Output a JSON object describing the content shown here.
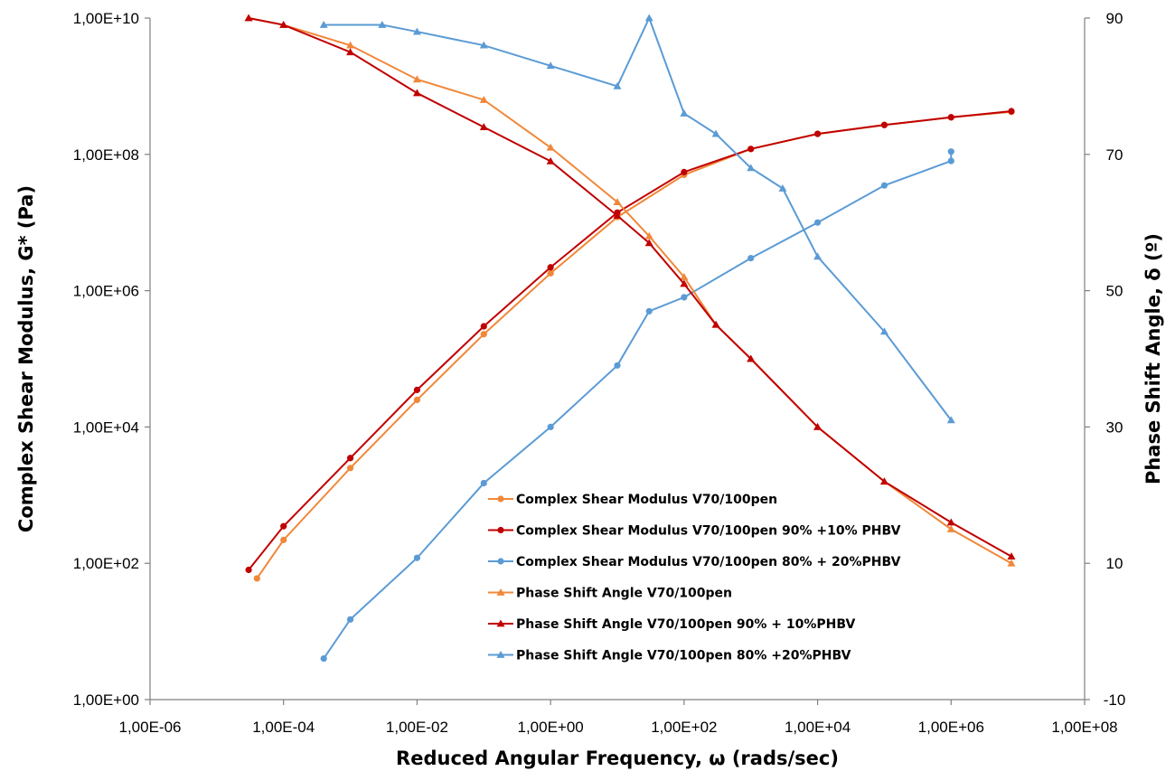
{
  "chart_data": {
    "type": "line",
    "xlabel": "Reduced Angular Frequency, ω (rads/sec)",
    "ylabel": "Complex Shear Modulus, G* (Pa)",
    "y2label": "Phase Shift Angle, δ (º)",
    "x_scale": "log",
    "y_scale": "log",
    "xlim": [
      1e-06,
      100000000.0
    ],
    "ylim": [
      1,
      10000000000.0
    ],
    "y2lim": [
      -10,
      90
    ],
    "x_tick_labels": [
      "1,00E-06",
      "1,00E-04",
      "1,00E-02",
      "1,00E+00",
      "1,00E+02",
      "1,00E+04",
      "1,00E+06",
      "1,00E+08"
    ],
    "y_tick_labels": [
      "1,00E+00",
      "1,00E+02",
      "1,00E+04",
      "1,00E+06",
      "1,00E+08",
      "1,00E+10"
    ],
    "y2_tick_labels": [
      "-10",
      "10",
      "30",
      "50",
      "70",
      "90"
    ],
    "grid": false,
    "legend_position": "center-bottom",
    "series": [
      {
        "name": "Complex Shear Modulus V70/100pen",
        "axis": "left",
        "marker": "circle",
        "color": "#F0883A",
        "x": [
          4e-05,
          0.0001,
          0.001,
          0.01,
          0.1,
          1,
          10,
          100,
          1000,
          10000.0,
          100000.0,
          1000000.0,
          8000000.0
        ],
        "y": [
          60,
          220,
          2500,
          25000,
          230000,
          1800000,
          12000000,
          50000000,
          120000000,
          200000000,
          270000000,
          350000000,
          420000000
        ]
      },
      {
        "name": "Complex Shear Modulus V70/100pen 90% +10% PHBV",
        "axis": "left",
        "marker": "circle",
        "color": "#C00000",
        "x": [
          3e-05,
          0.0001,
          0.001,
          0.01,
          0.1,
          1,
          10,
          100,
          1000,
          10000.0,
          100000.0,
          1000000.0,
          8000000.0
        ],
        "y": [
          80,
          350,
          3500,
          35000,
          300000,
          2200000,
          14000000,
          55000000,
          120000000,
          200000000,
          270000000,
          350000000,
          430000000
        ]
      },
      {
        "name": "Complex Shear Modulus V70/100pen 80% + 20%PHBV",
        "axis": "left",
        "marker": "circle",
        "color": "#5B9BD5",
        "x": [
          0.0004,
          0.001,
          0.01,
          0.1,
          1,
          10,
          30,
          100,
          1000,
          10000.0,
          100000.0,
          1000000.0,
          1000000.0
        ],
        "y": [
          4,
          15,
          120,
          1500,
          10000,
          80000,
          500000,
          800000,
          3000000,
          10000000,
          35000000,
          80000000,
          110000000
        ]
      },
      {
        "name": "Phase Shift Angle V70/100pen",
        "axis": "right",
        "marker": "triangle",
        "color": "#F0883A",
        "x": [
          3e-05,
          0.0001,
          0.001,
          0.01,
          0.1,
          1,
          10,
          30,
          100,
          300,
          1000,
          10000.0,
          100000.0,
          1000000.0,
          8000000.0
        ],
        "y": [
          90,
          89,
          86,
          81,
          78,
          71,
          63,
          58,
          52,
          45,
          40,
          30,
          22,
          15,
          10
        ]
      },
      {
        "name": "Phase Shift Angle V70/100pen 90% + 10%PHBV",
        "axis": "right",
        "marker": "triangle",
        "color": "#C00000",
        "x": [
          3e-05,
          0.0001,
          0.001,
          0.01,
          0.1,
          1,
          10,
          30,
          100,
          300,
          1000,
          10000.0,
          100000.0,
          1000000.0,
          8000000.0
        ],
        "y": [
          90,
          89,
          85,
          79,
          74,
          69,
          61,
          57,
          51,
          45,
          40,
          30,
          22,
          16,
          11
        ]
      },
      {
        "name": "Phase Shift Angle V70/100pen 80% +20%PHBV",
        "axis": "right",
        "marker": "triangle",
        "color": "#5B9BD5",
        "x": [
          0.0004,
          0.003,
          0.01,
          0.1,
          1,
          10,
          30,
          100,
          300,
          1000,
          3000,
          10000.0,
          100000.0,
          1000000.0
        ],
        "y": [
          89,
          89,
          88,
          86,
          83,
          80,
          90,
          76,
          73,
          68,
          65,
          55,
          44,
          31
        ]
      }
    ]
  }
}
